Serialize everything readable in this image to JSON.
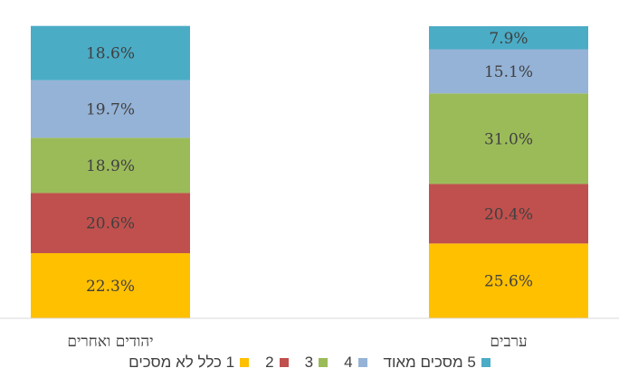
{
  "chart_data": {
    "type": "bar",
    "stacked": true,
    "percent": true,
    "categories": [
      "יהודים ואחרים",
      "ערבים"
    ],
    "series": [
      {
        "name": "1 כלל לא מסכים",
        "color": "#FFC000",
        "values": [
          22.3,
          25.6
        ],
        "labels": [
          "22.3%",
          "25.6%"
        ]
      },
      {
        "name": "2",
        "color": "#C0504D",
        "values": [
          20.6,
          20.4
        ],
        "labels": [
          "20.6%",
          "20.4%"
        ]
      },
      {
        "name": "3",
        "color": "#9BBB59",
        "values": [
          18.9,
          31.0
        ],
        "labels": [
          "18.9%",
          "31.0%"
        ]
      },
      {
        "name": "4",
        "color": "#95B3D7",
        "values": [
          19.7,
          15.1
        ],
        "labels": [
          "19.7%",
          "15.1%"
        ]
      },
      {
        "name": "5 מסכים מאוד",
        "color": "#4BACC6",
        "values": [
          18.6,
          7.9
        ],
        "labels": [
          "18.6%",
          "7.9%"
        ]
      }
    ],
    "ylim": [
      0,
      100
    ],
    "grid": false,
    "legend_position": "bottom"
  }
}
